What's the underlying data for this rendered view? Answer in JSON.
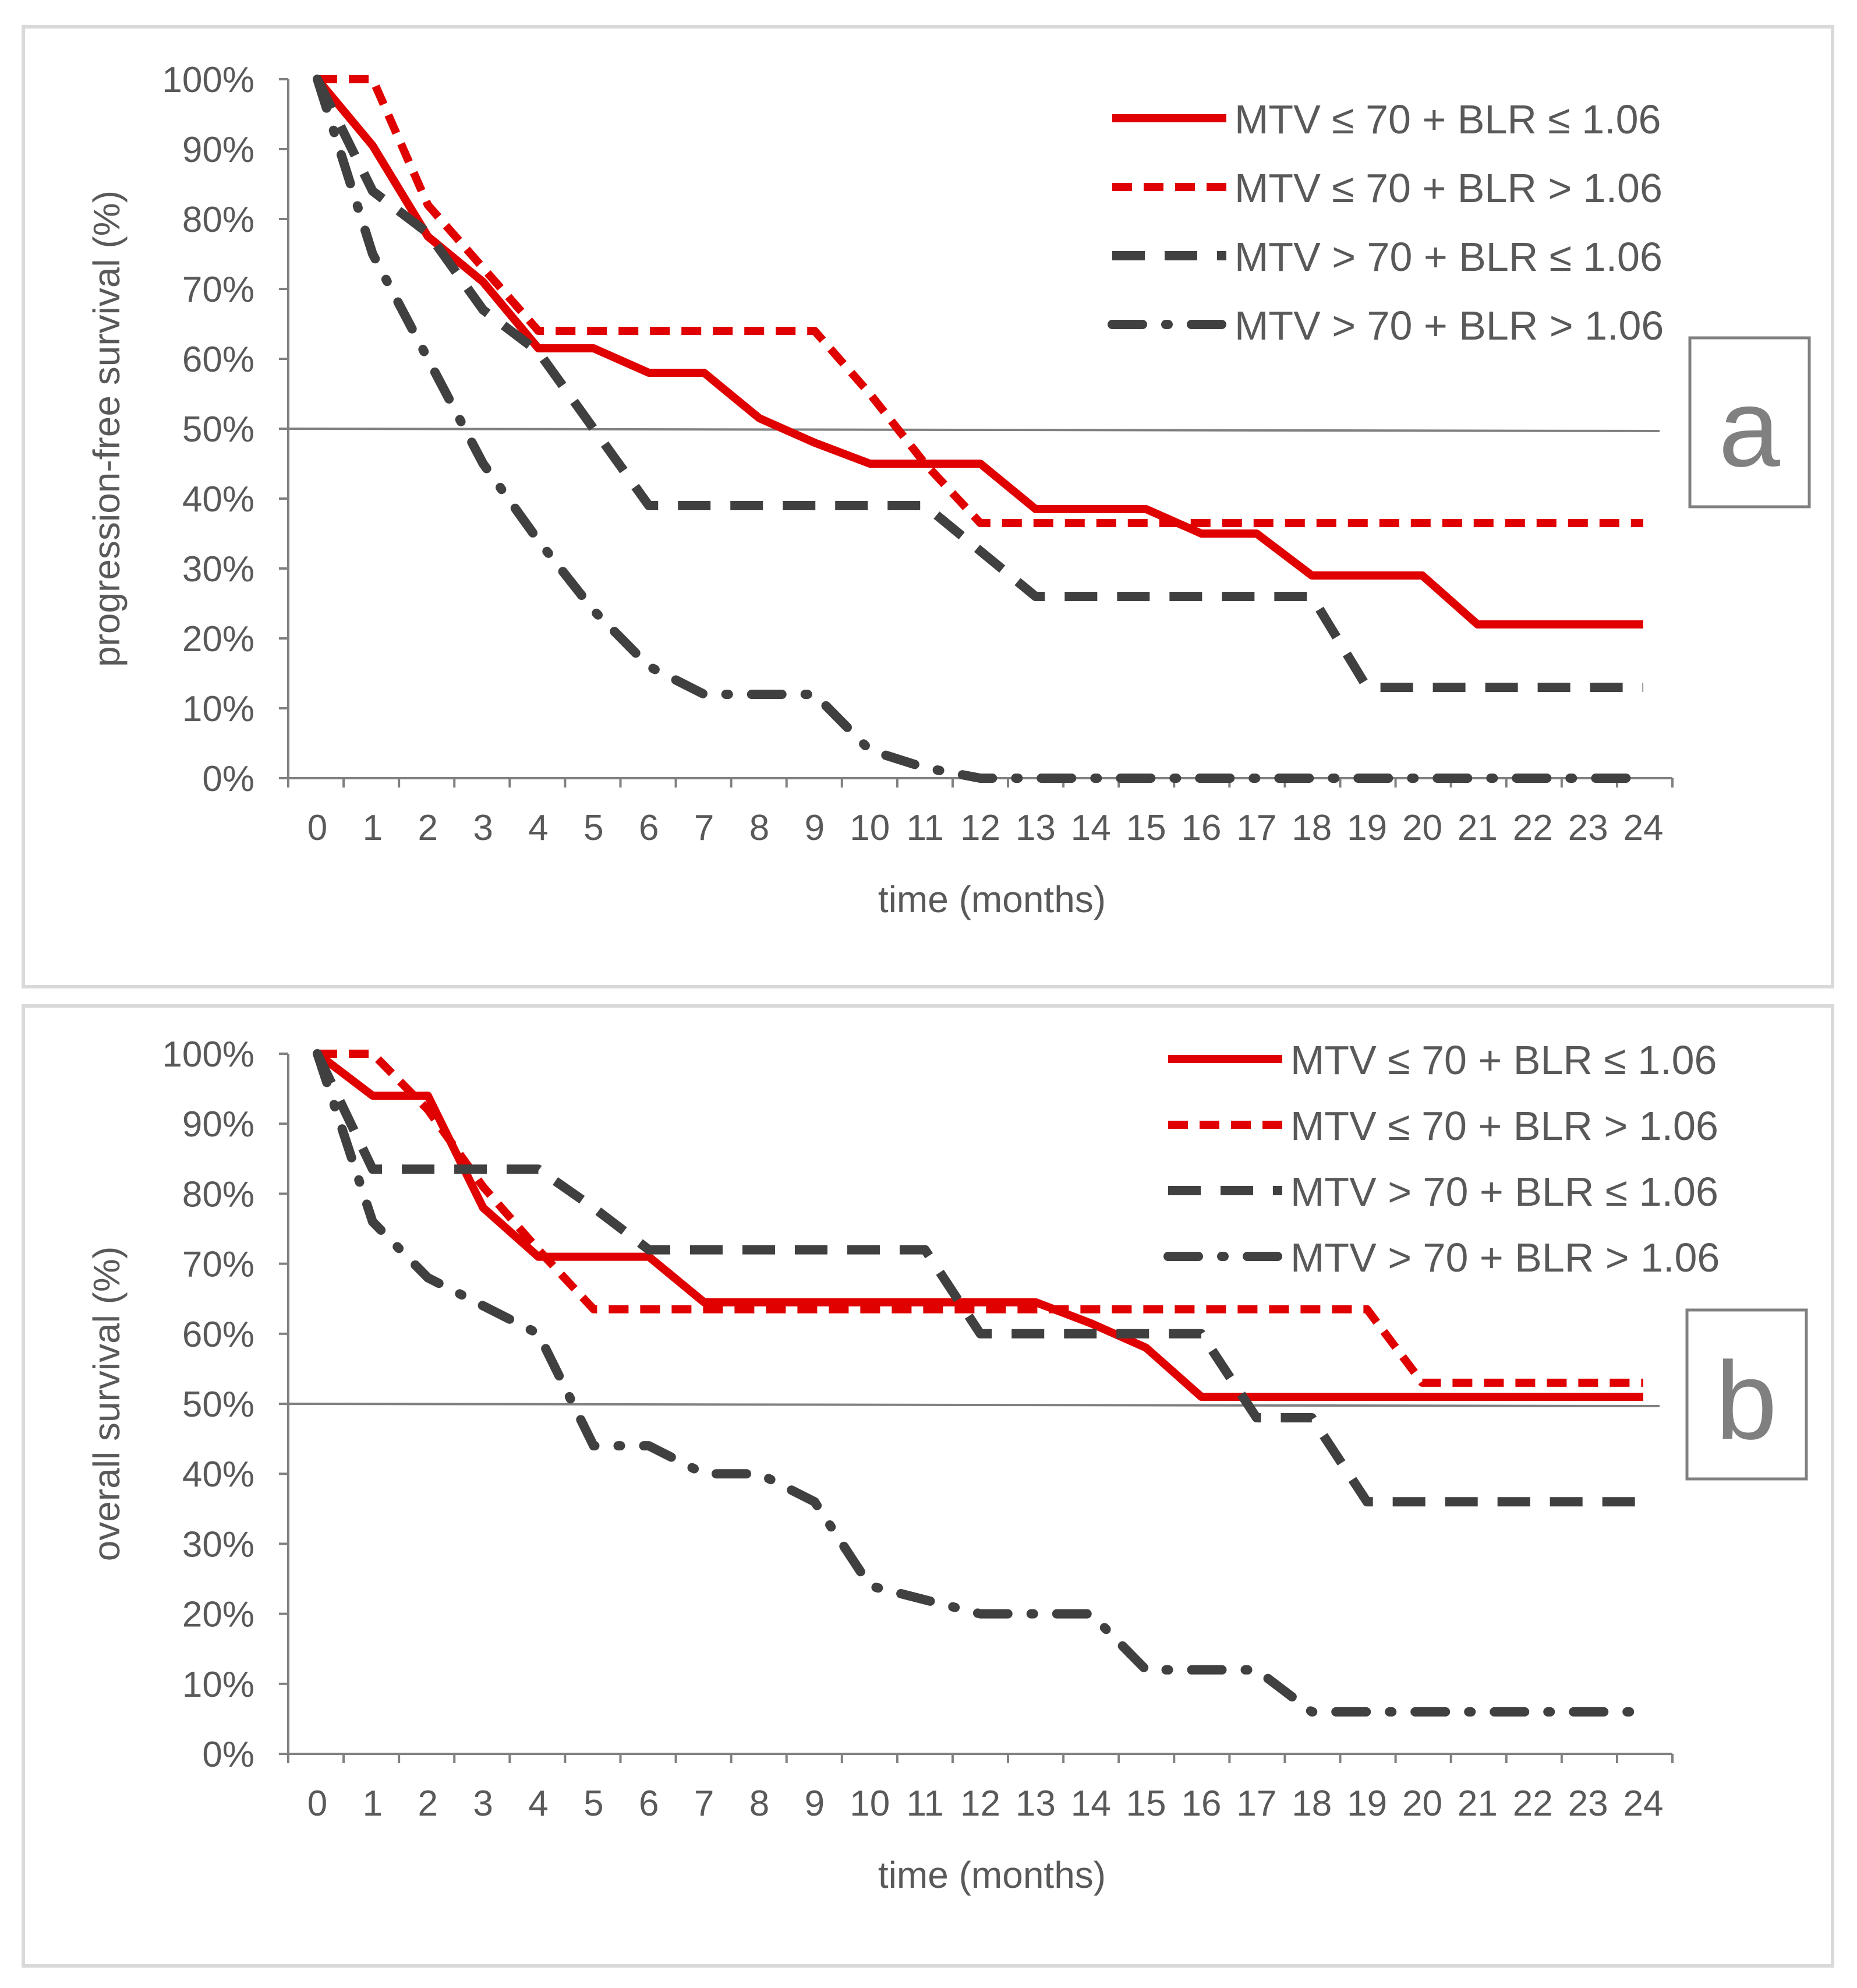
{
  "chart_data": [
    {
      "type": "line",
      "panel_label": "a",
      "ylabel": "progression-free survival (%)",
      "xlabel": "time (months)",
      "x_ticks": [
        "0",
        "1",
        "2",
        "3",
        "4",
        "5",
        "6",
        "7",
        "8",
        "9",
        "10",
        "11",
        "12",
        "13",
        "14",
        "15",
        "16",
        "17",
        "18",
        "19",
        "20",
        "21",
        "22",
        "23",
        "24"
      ],
      "y_ticks": [
        "0%",
        "10%",
        "20%",
        "30%",
        "40%",
        "50%",
        "60%",
        "70%",
        "80%",
        "90%",
        "100%"
      ],
      "xlim": [
        0,
        24
      ],
      "ylim": [
        0,
        100
      ],
      "reference_line": 50,
      "legend_position": "top-right",
      "series": [
        {
          "name": "MTV ≤ 70 + BLR ≤ 1.06",
          "style": "solid",
          "color": "#e00000",
          "x": [
            0,
            1,
            2,
            3,
            4,
            5,
            6,
            7,
            8,
            9,
            10,
            11,
            12,
            13,
            14,
            15,
            16,
            17,
            18,
            19,
            20,
            21,
            22,
            23,
            24
          ],
          "y": [
            100,
            90.5,
            77.5,
            71,
            61.5,
            61.5,
            58,
            58,
            51.5,
            48,
            45,
            45,
            45,
            38.5,
            38.5,
            38.5,
            35,
            35,
            29,
            29,
            29,
            22,
            22,
            22,
            22
          ]
        },
        {
          "name": "MTV ≤ 70 + BLR > 1.06",
          "style": "short-dash",
          "color": "#e00000",
          "x": [
            0,
            1,
            2,
            3,
            4,
            5,
            6,
            7,
            8,
            9,
            10,
            11,
            12,
            13,
            14,
            15,
            16,
            17,
            18,
            19,
            20,
            21,
            22,
            23,
            24
          ],
          "y": [
            100,
            100,
            82,
            73,
            64,
            64,
            64,
            64,
            64,
            64,
            55,
            45,
            36.5,
            36.5,
            36.5,
            36.5,
            36.5,
            36.5,
            36.5,
            36.5,
            36.5,
            36.5,
            36.5,
            36.5,
            36.5
          ]
        },
        {
          "name": "MTV > 70 + BLR ≤ 1.06",
          "style": "long-dash",
          "color": "#404040",
          "x": [
            0,
            1,
            2,
            3,
            4,
            5,
            6,
            7,
            8,
            9,
            10,
            11,
            12,
            13,
            14,
            15,
            16,
            17,
            18,
            19,
            20,
            21,
            22,
            23,
            24
          ],
          "y": [
            100,
            84,
            78,
            67,
            61,
            50,
            39,
            39,
            39,
            39,
            39,
            39,
            32.5,
            26,
            26,
            26,
            26,
            26,
            26,
            13,
            13,
            13,
            13,
            13,
            13
          ]
        },
        {
          "name": "MTV > 70 + BLR > 1.06",
          "style": "dash-dot",
          "color": "#404040",
          "x": [
            0,
            1,
            2,
            3,
            4,
            5,
            6,
            7,
            8,
            9,
            10,
            11,
            12,
            13,
            14,
            15,
            16,
            17,
            18,
            19,
            20,
            21,
            22,
            23,
            24
          ],
          "y": [
            100,
            75,
            60,
            45,
            34,
            24,
            16,
            12,
            12,
            12,
            4,
            1.5,
            0,
            0,
            0,
            0,
            0,
            0,
            0,
            0,
            0,
            0,
            0,
            0,
            0
          ]
        }
      ]
    },
    {
      "type": "line",
      "panel_label": "b",
      "ylabel": "overall survival (%)",
      "xlabel": "time (months)",
      "x_ticks": [
        "0",
        "1",
        "2",
        "3",
        "4",
        "5",
        "6",
        "7",
        "8",
        "9",
        "10",
        "11",
        "12",
        "13",
        "14",
        "15",
        "16",
        "17",
        "18",
        "19",
        "20",
        "21",
        "22",
        "23",
        "24"
      ],
      "y_ticks": [
        "0%",
        "10%",
        "20%",
        "30%",
        "40%",
        "50%",
        "60%",
        "70%",
        "80%",
        "90%",
        "100%"
      ],
      "xlim": [
        0,
        24
      ],
      "ylim": [
        0,
        100
      ],
      "reference_line": 50,
      "legend_position": "top-right",
      "series": [
        {
          "name": "MTV ≤ 70 + BLR ≤ 1.06",
          "style": "solid",
          "color": "#e00000",
          "x": [
            0,
            1,
            2,
            3,
            4,
            5,
            6,
            7,
            8,
            9,
            10,
            11,
            12,
            13,
            14,
            15,
            16,
            17,
            18,
            19,
            20,
            21,
            22,
            23,
            24
          ],
          "y": [
            100,
            94,
            94,
            78,
            71,
            71,
            71,
            64.5,
            64.5,
            64.5,
            64.5,
            64.5,
            64.5,
            64.5,
            61.5,
            58,
            51,
            51,
            51,
            51,
            51,
            51,
            51,
            51,
            51
          ]
        },
        {
          "name": "MTV ≤ 70 + BLR > 1.06",
          "style": "short-dash",
          "color": "#e00000",
          "x": [
            0,
            1,
            2,
            3,
            4,
            5,
            6,
            7,
            8,
            9,
            10,
            11,
            12,
            13,
            14,
            15,
            16,
            17,
            18,
            19,
            20,
            21,
            22,
            23,
            24
          ],
          "y": [
            100,
            100,
            92,
            81,
            72,
            63.5,
            63.5,
            63.5,
            63.5,
            63.5,
            63.5,
            63.5,
            63.5,
            63.5,
            63.5,
            63.5,
            63.5,
            63.5,
            63.5,
            63.5,
            53,
            53,
            53,
            53,
            53
          ]
        },
        {
          "name": "MTV > 70 + BLR ≤ 1.06",
          "style": "long-dash",
          "color": "#404040",
          "x": [
            0,
            1,
            2,
            3,
            4,
            5,
            6,
            7,
            8,
            9,
            10,
            11,
            12,
            13,
            14,
            15,
            16,
            17,
            18,
            19,
            20,
            21,
            22,
            23,
            24
          ],
          "y": [
            100,
            83.5,
            83.5,
            83.5,
            83.5,
            78,
            72,
            72,
            72,
            72,
            72,
            72,
            60,
            60,
            60,
            60,
            60,
            48,
            48,
            36,
            36,
            36,
            36,
            36,
            36
          ]
        },
        {
          "name": "MTV > 70 + BLR > 1.06",
          "style": "dash-dot",
          "color": "#404040",
          "x": [
            0,
            1,
            2,
            3,
            4,
            5,
            6,
            7,
            8,
            9,
            10,
            11,
            12,
            13,
            14,
            15,
            16,
            17,
            18,
            19,
            20,
            21,
            22,
            23,
            24
          ],
          "y": [
            100,
            76,
            68,
            64,
            60,
            44,
            44,
            40,
            40,
            36,
            24,
            22,
            20,
            20,
            20,
            12,
            12,
            12,
            6,
            6,
            6,
            6,
            6,
            6,
            6
          ]
        }
      ]
    }
  ]
}
